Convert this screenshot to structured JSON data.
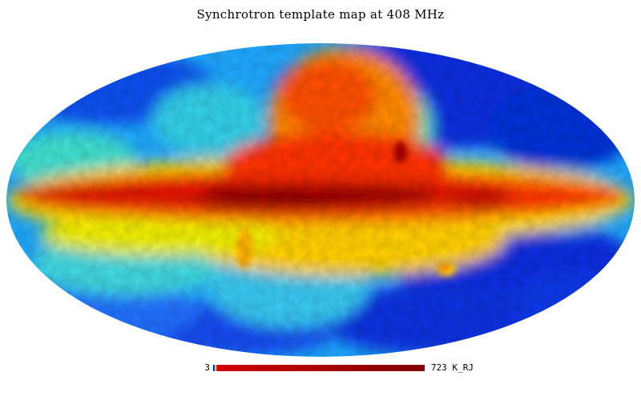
{
  "title": "Synchrotron template map at 408 MHz",
  "colorbar": {
    "min_label": "3",
    "max_label": "723 K_RJ",
    "min_value": 3,
    "max_value": 723,
    "unit": "K_RJ",
    "colormap": [
      "#00007f",
      "#0000ff",
      "#00bfff",
      "#00ffff",
      "#80ff80",
      "#ffff00",
      "#ff8000",
      "#ff0000",
      "#7f0000"
    ]
  },
  "map": {
    "projection": "mollweide",
    "background": "#ffffff"
  }
}
